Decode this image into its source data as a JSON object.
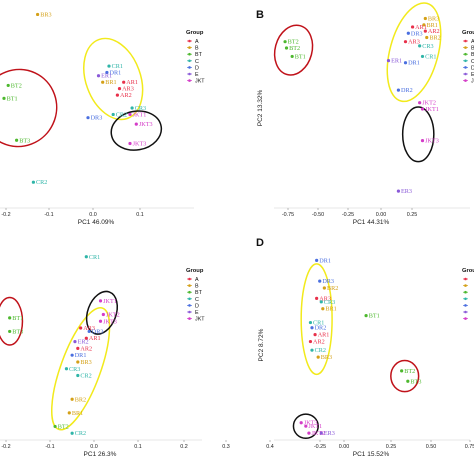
{
  "colors": {
    "A": "#e8304a",
    "B": "#d4a017",
    "BT": "#4db82e",
    "C": "#2fb5a8",
    "D": "#4a6fe0",
    "E": "#8a5ad8",
    "JKT": "#d43cc8",
    "ellipse_red": "#c0121a",
    "ellipse_yellow": "#f2ea1c",
    "ellipse_black": "#111111"
  },
  "chart_data": [
    {
      "type": "scatter",
      "panel_letter": "",
      "xlabel": "PC1 46.09%",
      "ylabel": "",
      "xlim": [
        -0.2,
        0.2
      ],
      "ylim": [
        -0.26,
        0.36
      ],
      "x_ticks": [
        "-0.2",
        "-0.1",
        "0.0",
        "0.1"
      ],
      "y_ticks": [],
      "legend_title": "Group",
      "legend": [
        "A",
        "B",
        "BT",
        "C",
        "D",
        "E",
        "JKT"
      ],
      "points": [
        {
          "label": "BR3",
          "group": "B",
          "x": -0.12,
          "y": 0.34
        },
        {
          "label": "CR1",
          "group": "C",
          "x": 0.05,
          "y": 0.18
        },
        {
          "label": "DR1",
          "group": "D",
          "x": 0.045,
          "y": 0.16
        },
        {
          "label": "ER1",
          "group": "E",
          "x": 0.025,
          "y": 0.15
        },
        {
          "label": "BR1",
          "group": "B",
          "x": 0.035,
          "y": 0.13
        },
        {
          "label": "AR1",
          "group": "A",
          "x": 0.085,
          "y": 0.13
        },
        {
          "label": "AR3",
          "group": "A",
          "x": 0.075,
          "y": 0.11
        },
        {
          "label": "AR2",
          "group": "A",
          "x": 0.07,
          "y": 0.09
        },
        {
          "label": "BT2",
          "group": "BT",
          "x": -0.19,
          "y": 0.12
        },
        {
          "label": "BT1",
          "group": "BT",
          "x": -0.2,
          "y": 0.08
        },
        {
          "label": "BT3",
          "group": "BT",
          "x": -0.17,
          "y": -0.05
        },
        {
          "label": "JKT1",
          "group": "JKT",
          "x": 0.1,
          "y": 0.03
        },
        {
          "label": "CR3",
          "group": "C",
          "x": 0.105,
          "y": 0.05
        },
        {
          "label": "CR2",
          "group": "C",
          "x": 0.06,
          "y": 0.03
        },
        {
          "label": "DR3",
          "group": "D",
          "x": 0.0,
          "y": 0.02
        },
        {
          "label": "JKT3",
          "group": "JKT",
          "x": 0.115,
          "y": 0.0
        },
        {
          "label": "JKT3",
          "group": "JKT",
          "x": 0.1,
          "y": -0.06
        },
        {
          "label": "CR2",
          "group": "C",
          "x": -0.13,
          "y": -0.18
        }
      ],
      "ellipses": [
        {
          "color": "red",
          "cx": -0.165,
          "cy": 0.05,
          "rx": 0.09,
          "ry": 0.12,
          "angle": 25
        },
        {
          "color": "yellow",
          "cx": 0.06,
          "cy": 0.14,
          "rx": 0.065,
          "ry": 0.13,
          "angle": -20
        },
        {
          "color": "black",
          "cx": 0.115,
          "cy": -0.02,
          "rx": 0.06,
          "ry": 0.06,
          "angle": -10
        }
      ]
    },
    {
      "type": "scatter",
      "panel_letter": "B",
      "xlabel": "PC1 44.31%",
      "ylabel": "PC2 13.32%",
      "xlim": [
        -0.8,
        0.4
      ],
      "ylim": [
        -0.5,
        0.45
      ],
      "x_ticks": [
        "-0.75",
        "-0.50",
        "-0.25",
        "0.00",
        "0.25"
      ],
      "y_ticks": [],
      "legend_title": "Group",
      "legend": [
        "A",
        "B",
        "BT",
        "C",
        "D",
        "E",
        "JKT"
      ],
      "points": [
        {
          "label": "BR3",
          "group": "B",
          "x": 0.24,
          "y": 0.4
        },
        {
          "label": "BR1",
          "group": "B",
          "x": 0.23,
          "y": 0.37
        },
        {
          "label": "AR1",
          "group": "A",
          "x": 0.15,
          "y": 0.36
        },
        {
          "label": "DR3",
          "group": "D",
          "x": 0.12,
          "y": 0.33
        },
        {
          "label": "AR2",
          "group": "A",
          "x": 0.24,
          "y": 0.34
        },
        {
          "label": "BR2",
          "group": "B",
          "x": 0.25,
          "y": 0.31
        },
        {
          "label": "AR3",
          "group": "A",
          "x": 0.1,
          "y": 0.29
        },
        {
          "label": "CR3",
          "group": "C",
          "x": 0.2,
          "y": 0.27
        },
        {
          "label": "CR1",
          "group": "C",
          "x": 0.22,
          "y": 0.22
        },
        {
          "label": "ER1",
          "group": "E",
          "x": -0.02,
          "y": 0.2
        },
        {
          "label": "DR1",
          "group": "D",
          "x": 0.1,
          "y": 0.19
        },
        {
          "label": "BT2",
          "group": "BT",
          "x": -0.75,
          "y": 0.29
        },
        {
          "label": "BT2",
          "group": "BT",
          "x": -0.74,
          "y": 0.26
        },
        {
          "label": "BT1",
          "group": "BT",
          "x": -0.7,
          "y": 0.22
        },
        {
          "label": "DR2",
          "group": "D",
          "x": 0.05,
          "y": 0.06
        },
        {
          "label": "JKT2",
          "group": "JKT",
          "x": 0.2,
          "y": 0.0
        },
        {
          "label": "JKT1",
          "group": "JKT",
          "x": 0.22,
          "y": -0.03
        },
        {
          "label": "JKT3",
          "group": "JKT",
          "x": 0.22,
          "y": -0.18
        },
        {
          "label": "ER3",
          "group": "E",
          "x": 0.05,
          "y": -0.42
        }
      ],
      "ellipses": [
        {
          "color": "red",
          "cx": -0.69,
          "cy": 0.25,
          "rx": 0.13,
          "ry": 0.12,
          "angle": 15
        },
        {
          "color": "yellow",
          "cx": 0.16,
          "cy": 0.24,
          "rx": 0.17,
          "ry": 0.24,
          "angle": 15
        },
        {
          "color": "black",
          "cx": 0.19,
          "cy": -0.15,
          "rx": 0.11,
          "ry": 0.13,
          "angle": 0
        }
      ]
    },
    {
      "type": "scatter",
      "panel_letter": "",
      "xlabel": "PC1 26.3%",
      "ylabel": "",
      "xlim": [
        -0.22,
        0.4
      ],
      "ylim": [
        -0.32,
        0.24
      ],
      "x_ticks": [
        "-0.2",
        "-0.1",
        "0.0",
        "0.1",
        "0.2",
        "0.3",
        "0.4"
      ],
      "y_ticks": [],
      "legend_title": "Group",
      "legend": [
        "A",
        "B",
        "BT",
        "C",
        "D",
        "E",
        "JKT"
      ],
      "points": [
        {
          "label": "CR1",
          "group": "C",
          "x": 0.07,
          "y": 0.22
        },
        {
          "label": "JKT1",
          "group": "JKT",
          "x": 0.12,
          "y": 0.09
        },
        {
          "label": "JKT2",
          "group": "JKT",
          "x": 0.13,
          "y": 0.05
        },
        {
          "label": "JKT3",
          "group": "JKT",
          "x": 0.12,
          "y": 0.03
        },
        {
          "label": "BT1",
          "group": "BT",
          "x": -0.2,
          "y": 0.04
        },
        {
          "label": "BT3",
          "group": "BT",
          "x": -0.2,
          "y": 0.0
        },
        {
          "label": "AR3",
          "group": "A",
          "x": 0.05,
          "y": 0.01
        },
        {
          "label": "DR3",
          "group": "D",
          "x": 0.08,
          "y": 0.0
        },
        {
          "label": "AR1",
          "group": "A",
          "x": 0.07,
          "y": -0.02
        },
        {
          "label": "ER2",
          "group": "E",
          "x": 0.03,
          "y": -0.03
        },
        {
          "label": "AR2",
          "group": "A",
          "x": 0.04,
          "y": -0.05
        },
        {
          "label": "DR1",
          "group": "D",
          "x": 0.02,
          "y": -0.07
        },
        {
          "label": "BR3",
          "group": "B",
          "x": 0.04,
          "y": -0.09
        },
        {
          "label": "CR3",
          "group": "C",
          "x": 0.0,
          "y": -0.11
        },
        {
          "label": "CR2",
          "group": "C",
          "x": 0.04,
          "y": -0.13
        },
        {
          "label": "BR2",
          "group": "B",
          "x": 0.02,
          "y": -0.2
        },
        {
          "label": "BR1",
          "group": "B",
          "x": 0.01,
          "y": -0.24
        },
        {
          "label": "BT2",
          "group": "BT",
          "x": -0.04,
          "y": -0.28
        },
        {
          "label": "CR2",
          "group": "C",
          "x": 0.02,
          "y": -0.3
        }
      ],
      "ellipses": [
        {
          "color": "red",
          "cx": -0.2,
          "cy": 0.03,
          "rx": 0.045,
          "ry": 0.07,
          "angle": 0
        },
        {
          "color": "yellow",
          "cx": 0.05,
          "cy": -0.11,
          "rx": 0.07,
          "ry": 0.19,
          "angle": 20
        },
        {
          "color": "black",
          "cx": 0.125,
          "cy": 0.055,
          "rx": 0.05,
          "ry": 0.065,
          "angle": 20
        }
      ]
    },
    {
      "type": "scatter",
      "panel_letter": "D",
      "xlabel": "PC1 15.52%",
      "ylabel": "PC2 8.72%",
      "xlim": [
        -0.3,
        0.8
      ],
      "ylim": [
        -0.25,
        0.3
      ],
      "x_ticks": [
        "-0.25",
        "0.00",
        "0.25",
        "0.50",
        "0.75"
      ],
      "y_ticks": [],
      "legend_title": "Grou",
      "legend": [
        "",
        "",
        "",
        "",
        "",
        "",
        ""
      ],
      "points": [
        {
          "label": "DR1",
          "group": "D",
          "x": -0.05,
          "y": 0.27
        },
        {
          "label": "DR3",
          "group": "D",
          "x": -0.03,
          "y": 0.21
        },
        {
          "label": "BR2",
          "group": "B",
          "x": 0.0,
          "y": 0.19
        },
        {
          "label": "AR3",
          "group": "A",
          "x": -0.05,
          "y": 0.16
        },
        {
          "label": "CR3",
          "group": "C",
          "x": -0.02,
          "y": 0.15
        },
        {
          "label": "BR1",
          "group": "B",
          "x": -0.01,
          "y": 0.13
        },
        {
          "label": "BT1",
          "group": "BT",
          "x": 0.27,
          "y": 0.11
        },
        {
          "label": "CR1",
          "group": "C",
          "x": -0.09,
          "y": 0.09
        },
        {
          "label": "DR2",
          "group": "D",
          "x": -0.08,
          "y": 0.075
        },
        {
          "label": "AR1",
          "group": "A",
          "x": -0.06,
          "y": 0.055
        },
        {
          "label": "AR2",
          "group": "A",
          "x": -0.09,
          "y": 0.035
        },
        {
          "label": "CR2",
          "group": "C",
          "x": -0.08,
          "y": 0.01
        },
        {
          "label": "BR3",
          "group": "B",
          "x": -0.04,
          "y": -0.01
        },
        {
          "label": "BT2",
          "group": "BT",
          "x": 0.5,
          "y": -0.05
        },
        {
          "label": "BT3",
          "group": "BT",
          "x": 0.54,
          "y": -0.08
        },
        {
          "label": "JKT3",
          "group": "JKT",
          "x": -0.15,
          "y": -0.2
        },
        {
          "label": "JKT1",
          "group": "JKT",
          "x": -0.12,
          "y": -0.21
        },
        {
          "label": "JKT2",
          "group": "JKT",
          "x": -0.1,
          "y": -0.23
        },
        {
          "label": "ER3",
          "group": "E",
          "x": -0.02,
          "y": -0.23
        }
      ],
      "ellipses": [
        {
          "color": "red",
          "cx": 0.52,
          "cy": -0.065,
          "rx": 0.09,
          "ry": 0.045,
          "angle": 0
        },
        {
          "color": "yellow",
          "cx": -0.05,
          "cy": 0.1,
          "rx": 0.1,
          "ry": 0.16,
          "angle": 0
        },
        {
          "color": "black",
          "cx": -0.12,
          "cy": -0.21,
          "rx": 0.08,
          "ry": 0.035,
          "angle": 0
        }
      ]
    }
  ]
}
